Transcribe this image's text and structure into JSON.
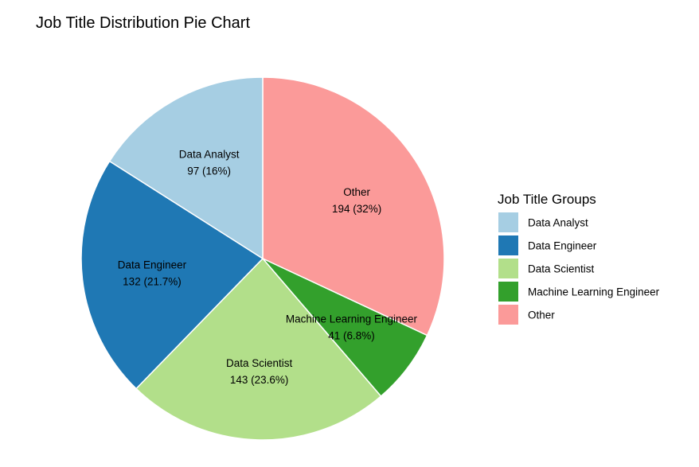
{
  "chart_data": {
    "type": "pie",
    "title": "Job Title Distribution Pie Chart",
    "legend": {
      "title": "Job Title Groups",
      "position": "right"
    },
    "slices": [
      {
        "label": "Other",
        "value": 194,
        "percent_label": "194 (32%)",
        "color": "#FB9A99"
      },
      {
        "label": "Machine Learning Engineer",
        "value": 41,
        "percent_label": "41 (6.8%)",
        "color": "#33A02C"
      },
      {
        "label": "Data Scientist",
        "value": 143,
        "percent_label": "143 (23.6%)",
        "color": "#B2DF8A"
      },
      {
        "label": "Data Engineer",
        "value": 132,
        "percent_label": "132 (21.7%)",
        "color": "#1F78B4"
      },
      {
        "label": "Data Analyst",
        "value": 97,
        "percent_label": "97 (16%)",
        "color": "#A6CEE3"
      }
    ],
    "legend_order": [
      "Data Analyst",
      "Data Engineer",
      "Data Scientist",
      "Machine Learning Engineer",
      "Other"
    ]
  }
}
